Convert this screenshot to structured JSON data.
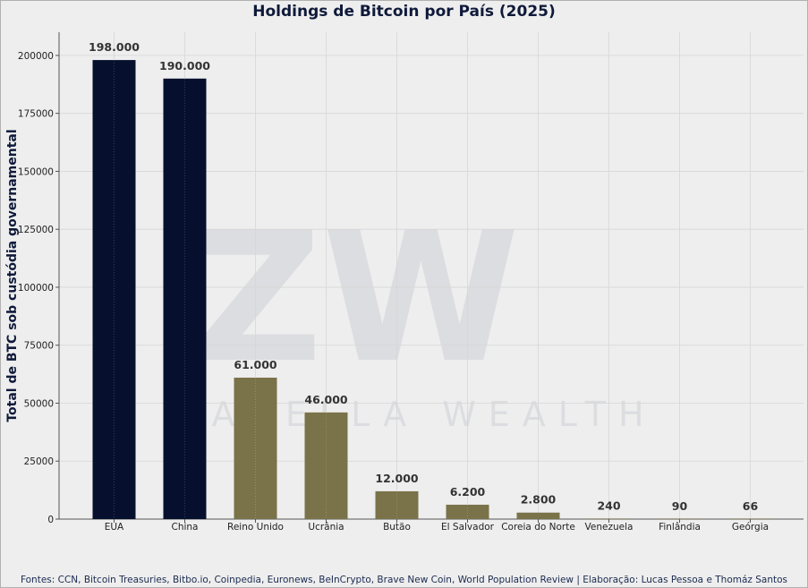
{
  "chart_data": {
    "type": "bar",
    "title": "Holdings de Bitcoin por País (2025)",
    "ylabel": "Total de BTC sob custódia governamental",
    "xlabel": "",
    "ylim": [
      0,
      210000
    ],
    "yticks": [
      0,
      25000,
      50000,
      75000,
      100000,
      125000,
      150000,
      175000,
      200000
    ],
    "categories": [
      "EUA",
      "China",
      "Reino Unido",
      "Ucrânia",
      "Butão",
      "El Salvador",
      "Coreia do Norte",
      "Venezuela",
      "Finlândia",
      "Geórgia"
    ],
    "values": [
      198000,
      190000,
      61000,
      46000,
      12000,
      6200,
      2800,
      240,
      90,
      66
    ],
    "value_labels": [
      "198.000",
      "190.000",
      "61.000",
      "46.000",
      "12.000",
      "6.200",
      "2.800",
      "240",
      "90",
      "66"
    ],
    "bar_colors": [
      "#06102e",
      "#06102e",
      "#7a7249",
      "#7a7249",
      "#7a7249",
      "#7a7249",
      "#7a7249",
      "#7a7249",
      "#7a7249",
      "#7a7249"
    ],
    "grid": true,
    "legend": "none"
  },
  "watermark": {
    "monogram": "ZW",
    "text": "ZANELLA WEALTH"
  },
  "source_note": "Fontes: CCN, Bitcoin Treasuries, Bitbo.io, Coinpedia, Euronews, BeInCrypto, Brave New Coin, World Population Review | Elaboração: Lucas Pessoa e Thomáz Santos",
  "colors": {
    "background": "#eeeeee",
    "primary_bar": "#06102e",
    "secondary_bar": "#7a7249",
    "title": "#0f1a3a"
  }
}
